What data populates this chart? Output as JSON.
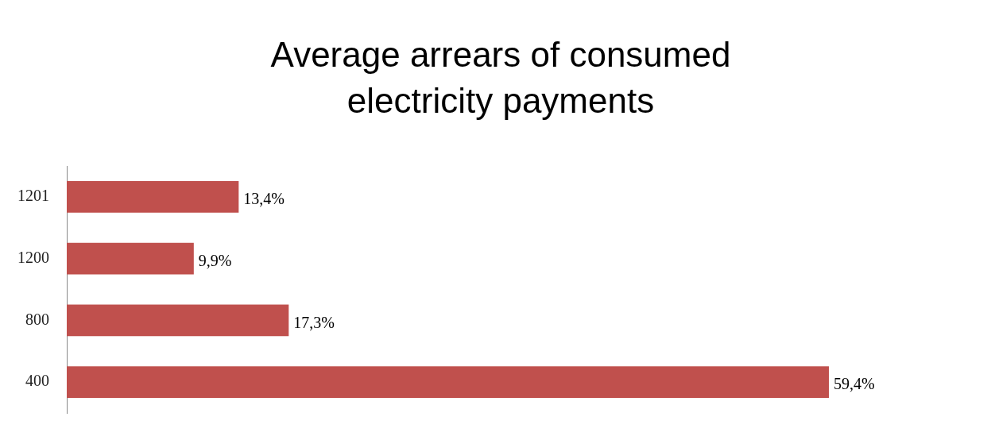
{
  "chart_data": {
    "type": "bar",
    "orientation": "horizontal",
    "title": "Average arrears of consumed electricity payments",
    "categories": [
      "1201",
      "1200",
      "800",
      "400"
    ],
    "values": [
      13.4,
      9.9,
      17.3,
      59.4
    ],
    "value_labels": [
      "13,4%",
      "9,9%",
      "17,3%",
      "59,4%"
    ],
    "color": "#c0504d"
  }
}
